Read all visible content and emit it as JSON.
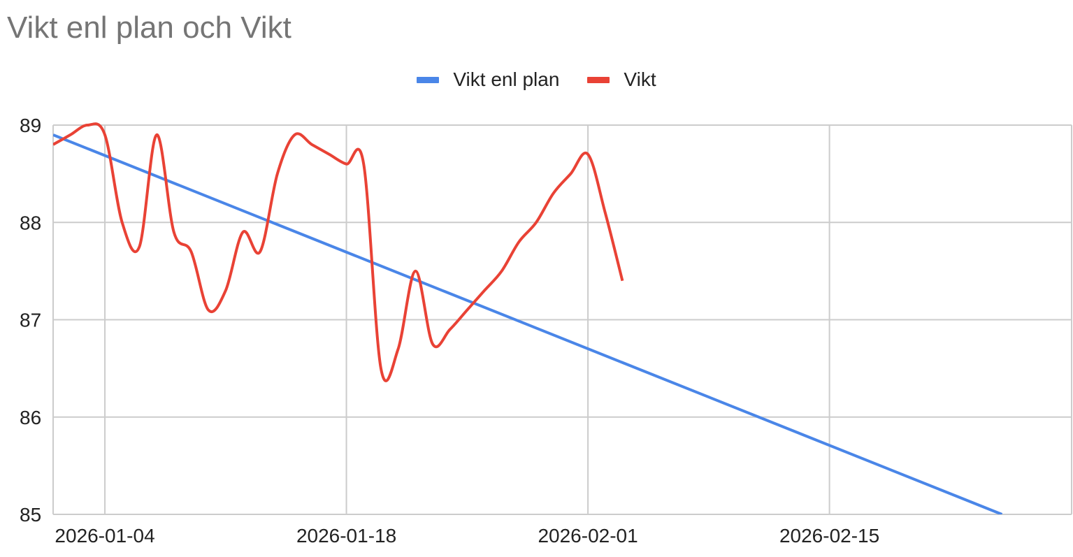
{
  "colors": {
    "plan": "#4a86e8",
    "vikt": "#e94235",
    "grid": "#cccccc",
    "title": "#757575"
  },
  "chart_data": {
    "type": "line",
    "title": "Vikt enl plan och Vikt",
    "xlabel": "",
    "ylabel": "",
    "xlim": [
      "2026-01-01",
      "2026-02-28"
    ],
    "ylim": [
      85,
      89
    ],
    "yticks": [
      "85",
      "86",
      "87",
      "88",
      "89"
    ],
    "xticks": [
      "2026-01-04",
      "2026-01-18",
      "2026-02-01",
      "2026-02-15"
    ],
    "grid": true,
    "legend_position": "top",
    "series": [
      {
        "name": "Vikt enl plan",
        "x": [
          "2026-01-01",
          "2026-02-25"
        ],
        "y": [
          88.9,
          85.0
        ]
      },
      {
        "name": "Vikt",
        "x": [
          "2026-01-01",
          "2026-01-02",
          "2026-01-03",
          "2026-01-04",
          "2026-01-05",
          "2026-01-06",
          "2026-01-07",
          "2026-01-08",
          "2026-01-09",
          "2026-01-10",
          "2026-01-11",
          "2026-01-12",
          "2026-01-13",
          "2026-01-14",
          "2026-01-15",
          "2026-01-16",
          "2026-01-17",
          "2026-01-18",
          "2026-01-19",
          "2026-01-20",
          "2026-01-21",
          "2026-01-22",
          "2026-01-23",
          "2026-01-24",
          "2026-01-25",
          "2026-01-26",
          "2026-01-27",
          "2026-01-28",
          "2026-01-29",
          "2026-01-30",
          "2026-01-31",
          "2026-02-01",
          "2026-02-02",
          "2026-02-03"
        ],
        "y": [
          88.8,
          88.9,
          89.0,
          88.9,
          88.0,
          87.75,
          88.9,
          87.9,
          87.7,
          87.1,
          87.3,
          87.9,
          87.7,
          88.5,
          88.9,
          88.8,
          88.7,
          88.6,
          88.6,
          86.5,
          86.7,
          87.5,
          86.75,
          86.9,
          87.1,
          87.3,
          87.5,
          87.8,
          88.0,
          88.3,
          88.5,
          88.7,
          88.1,
          87.4
        ]
      }
    ]
  }
}
